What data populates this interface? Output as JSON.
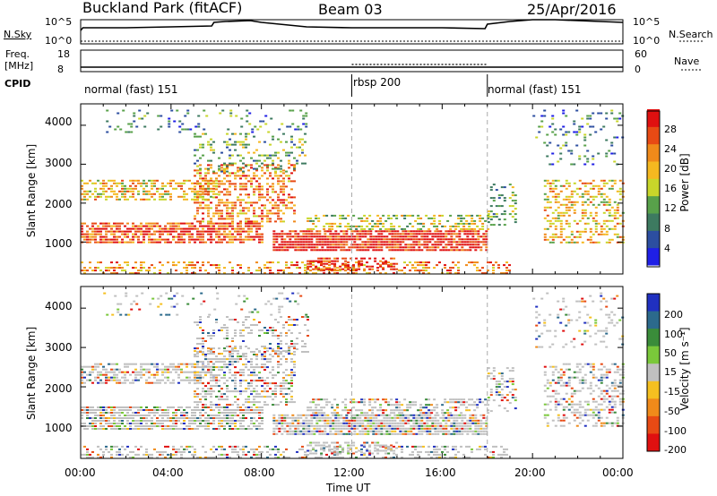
{
  "header": {
    "station": "Buckland Park (fitACF)",
    "beam": "Beam 03",
    "date": "25/Apr/2016"
  },
  "top_panels": {
    "nsky_label": "N.Sky",
    "nsky_ticks": [
      "10^5",
      "10^0"
    ],
    "nsearch_label": "N.Search",
    "nsearch_ticks": [
      "10^5",
      "10^0"
    ],
    "freq_label": "Freq.",
    "freq_unit": "[MHz]",
    "freq_ticks": [
      "18",
      "8"
    ],
    "nave_label": "Nave",
    "nave_ticks": [
      "60",
      "0"
    ],
    "cpid_label": "CPID",
    "cpid_segments": [
      {
        "label": "normal (fast) 151",
        "start_hour": 0,
        "end_hour": 12.0
      },
      {
        "label": "rbsp 200",
        "start_hour": 12.0,
        "end_hour": 18.0
      },
      {
        "label": "normal (fast) 151",
        "start_hour": 18.0,
        "end_hour": 24
      }
    ]
  },
  "chart_data": [
    {
      "type": "heatmap",
      "name": "power",
      "ylabel": "Slant Range [km]",
      "xlabel": "",
      "xlim": [
        0,
        24
      ],
      "ylim": [
        180,
        4550
      ],
      "yticks": [
        "1000",
        "2000",
        "3000",
        "4000"
      ],
      "colorbar": {
        "label": "Power [dB]",
        "ticks": [
          "4",
          "8",
          "12",
          "16",
          "20",
          "24",
          "28"
        ],
        "colors": [
          "#1f1fe6",
          "#2c4ea0",
          "#3d7a60",
          "#58a14a",
          "#c8d62a",
          "#f5b820",
          "#f08a1a",
          "#e84a14",
          "#e01010"
        ]
      }
    },
    {
      "type": "heatmap",
      "name": "velocity",
      "ylabel": "Slant Range [km]",
      "xlabel": "Time UT",
      "xlim": [
        0,
        24
      ],
      "ylim": [
        180,
        4550
      ],
      "xticks": [
        "00:00",
        "04:00",
        "08:00",
        "12:00",
        "16:00",
        "20:00",
        "00:00"
      ],
      "yticks": [
        "1000",
        "2000",
        "3000",
        "4000"
      ],
      "colorbar": {
        "label": "Velocity [m s⁻¹]",
        "ticks": [
          "200",
          "100",
          "50",
          "15",
          "-15",
          "-50",
          "-100",
          "-200"
        ],
        "colors": [
          "#2030c0",
          "#2c6a8c",
          "#3a8c3a",
          "#7ac83a",
          "#c0c0c0",
          "#f5c020",
          "#f08a1a",
          "#e84a14",
          "#e01010"
        ]
      }
    }
  ]
}
